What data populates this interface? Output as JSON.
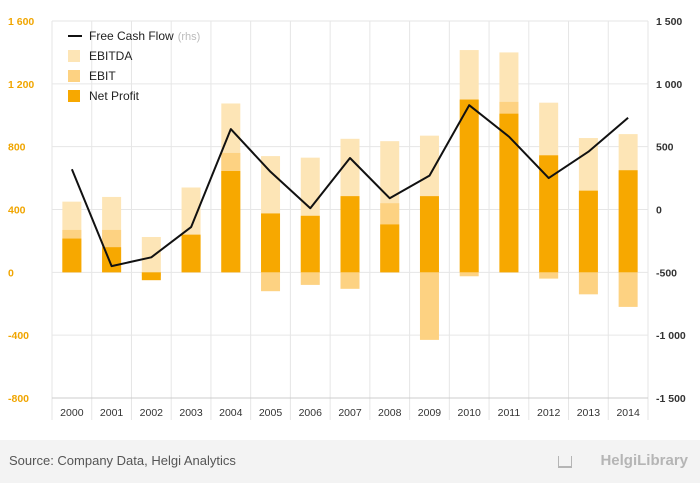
{
  "chart_data": {
    "type": "bar",
    "categories": [
      "2000",
      "2001",
      "2002",
      "2003",
      "2004",
      "2005",
      "2006",
      "2007",
      "2008",
      "2009",
      "2010",
      "2011",
      "2012",
      "2013",
      "2014"
    ],
    "series": [
      {
        "name": "EBITDA",
        "axis": "left",
        "chart": "bar",
        "color": "#fde5b6",
        "values": [
          450,
          480,
          225,
          540,
          1075,
          740,
          730,
          850,
          835,
          870,
          1415,
          1400,
          1080,
          855,
          880
        ]
      },
      {
        "name": "EBIT",
        "axis": "left",
        "chart": "bar",
        "color": "#fdd282",
        "values": [
          270,
          270,
          -25,
          230,
          760,
          -120,
          -80,
          -105,
          440,
          -430,
          -25,
          1085,
          -40,
          -140,
          -220
        ]
      },
      {
        "name": "Net Profit",
        "axis": "left",
        "chart": "bar",
        "color": "#f7a800",
        "values": [
          215,
          160,
          -50,
          240,
          645,
          375,
          360,
          485,
          305,
          485,
          1100,
          1010,
          745,
          520,
          650
        ]
      },
      {
        "name": "Free Cash Flow",
        "axis": "right",
        "chart": "line",
        "color": "#111111",
        "values": [
          320,
          -450,
          -380,
          -140,
          640,
          300,
          10,
          410,
          90,
          270,
          830,
          580,
          250,
          460,
          730
        ]
      }
    ],
    "y_left": {
      "ticks": [
        1600,
        1200,
        800,
        400,
        0,
        -400,
        -800
      ],
      "labels": [
        "1 600",
        "1 200",
        "800",
        "400",
        "0",
        "-400",
        "-800"
      ],
      "range": [
        -800,
        1600
      ]
    },
    "y_right": {
      "ticks": [
        1500,
        1000,
        500,
        0,
        -500,
        -1000,
        -1500
      ],
      "labels": [
        "1 500",
        "1 000",
        "500",
        "0",
        "-500",
        "-1 000",
        "-1 500"
      ],
      "range": [
        -1500,
        1500
      ]
    },
    "legend": [
      {
        "label": "Free Cash Flow",
        "suffix": "(rhs)",
        "kind": "line",
        "color": "#111111"
      },
      {
        "label": "EBITDA",
        "suffix": "",
        "kind": "box",
        "color": "#fde5b6"
      },
      {
        "label": "EBIT",
        "suffix": "",
        "kind": "box",
        "color": "#fdd282"
      },
      {
        "label": "Net Profit",
        "suffix": "",
        "kind": "box",
        "color": "#f7a800"
      }
    ],
    "legend_position": "top-left",
    "grid": true
  },
  "footer": {
    "source": "Source: Company Data, Helgi Analytics",
    "brand": "HelgiLibrary"
  }
}
